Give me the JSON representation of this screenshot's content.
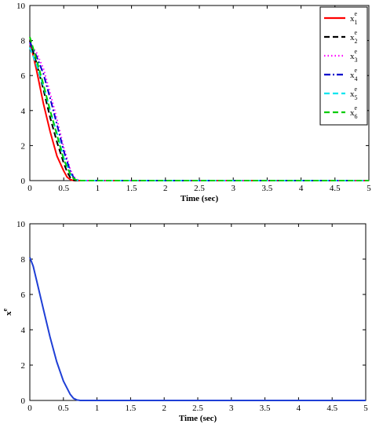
{
  "chart_data": [
    {
      "type": "line",
      "title": "",
      "xlabel": "Time (sec)",
      "ylabel": "",
      "xlim": [
        0,
        5
      ],
      "ylim": [
        0,
        10
      ],
      "xticks": [
        "0",
        "0.5",
        "1",
        "1.5",
        "2",
        "2.5",
        "3",
        "3.5",
        "4",
        "4.5",
        "5"
      ],
      "yticks": [
        "0",
        "2",
        "4",
        "6",
        "8",
        "10"
      ],
      "grid": false,
      "legend_position": "top-right",
      "series": [
        {
          "name": "x",
          "sub": "1",
          "sup": "e",
          "color": "#ff0000",
          "dash": "solid",
          "x": [
            0,
            0.1,
            0.2,
            0.3,
            0.4,
            0.5,
            0.55,
            0.6,
            0.65,
            0.7,
            5
          ],
          "y": [
            8.0,
            6.3,
            4.4,
            2.8,
            1.4,
            0.55,
            0.2,
            0.05,
            0.0,
            0.0,
            0.0
          ]
        },
        {
          "name": "x",
          "sub": "2",
          "sup": "e",
          "color": "#000000",
          "dash": "dash",
          "x": [
            0,
            0.1,
            0.2,
            0.3,
            0.4,
            0.5,
            0.55,
            0.6,
            0.65,
            0.7,
            5
          ],
          "y": [
            8.0,
            6.7,
            5.2,
            3.6,
            2.2,
            1.0,
            0.5,
            0.15,
            0.02,
            0.0,
            0.0
          ]
        },
        {
          "name": "x",
          "sub": "3",
          "sup": "e",
          "color": "#ff00ff",
          "dash": "dot",
          "x": [
            0,
            0.1,
            0.2,
            0.3,
            0.4,
            0.5,
            0.6,
            0.65,
            0.7,
            0.75,
            5
          ],
          "y": [
            7.8,
            7.3,
            6.4,
            5.0,
            3.5,
            1.9,
            0.6,
            0.2,
            0.05,
            0.0,
            0.0
          ]
        },
        {
          "name": "x",
          "sub": "4",
          "sup": "e",
          "color": "#0000cc",
          "dash": "dashdot",
          "x": [
            0,
            0.1,
            0.2,
            0.3,
            0.4,
            0.5,
            0.6,
            0.65,
            0.7,
            0.75,
            5
          ],
          "y": [
            7.9,
            7.1,
            6.1,
            4.7,
            3.2,
            1.7,
            0.5,
            0.15,
            0.03,
            0.0,
            0.0
          ]
        },
        {
          "name": "x",
          "sub": "5",
          "sup": "e",
          "color": "#00e5ee",
          "dash": "dash",
          "x": [
            0,
            0.1,
            0.2,
            0.3,
            0.4,
            0.5,
            0.6,
            0.65,
            0.7,
            0.75,
            5
          ],
          "y": [
            7.6,
            6.6,
            5.4,
            4.0,
            2.7,
            1.3,
            0.35,
            0.1,
            0.02,
            0.0,
            0.0
          ]
        },
        {
          "name": "x",
          "sub": "6",
          "sup": "e",
          "color": "#00cc00",
          "dash": "dash",
          "x": [
            0,
            0.1,
            0.2,
            0.3,
            0.4,
            0.5,
            0.6,
            0.65,
            0.7,
            0.75,
            5
          ],
          "y": [
            8.2,
            6.9,
            5.5,
            4.0,
            2.6,
            1.2,
            0.35,
            0.1,
            0.02,
            0.0,
            0.0
          ]
        }
      ]
    },
    {
      "type": "line",
      "title": "",
      "xlabel": "Time (sec)",
      "ylabel": "x",
      "ylabel_sup": "e",
      "xlim": [
        0,
        5
      ],
      "ylim": [
        0,
        10
      ],
      "xticks": [
        "0",
        "0.5",
        "1",
        "1.5",
        "2",
        "2.5",
        "3",
        "3.5",
        "4",
        "4.5",
        "5"
      ],
      "yticks": [
        "0",
        "2",
        "4",
        "6",
        "8",
        "10"
      ],
      "grid": false,
      "series": [
        {
          "color": "#1f3fd6",
          "dash": "solid",
          "x": [
            0,
            0.05,
            0.1,
            0.2,
            0.3,
            0.4,
            0.5,
            0.6,
            0.65,
            0.7,
            0.75,
            0.8,
            5
          ],
          "y": [
            8.1,
            7.6,
            6.8,
            5.2,
            3.6,
            2.2,
            1.1,
            0.35,
            0.12,
            0.03,
            0.0,
            0.0,
            0.0
          ]
        }
      ]
    }
  ]
}
